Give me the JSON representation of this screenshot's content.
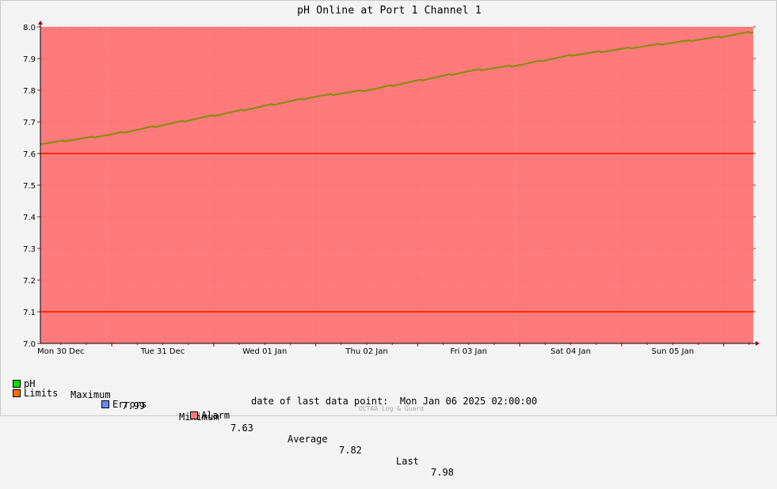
{
  "title": "pH Online at Port 1 Channel 1",
  "colors": {
    "background": "#f3f3f3",
    "alarm_fill": "#ff7b7b",
    "limit_line": "#ff2a00",
    "series": "#8a8a10",
    "ph_swatch": "#00e000",
    "limits_swatch": "#ff6a00",
    "errors_swatch": "#6e8aff",
    "alarm_swatch": "#ff7b7b"
  },
  "legend": {
    "ph_label": "pH",
    "max_label": "Maximum",
    "max_value": "7.99",
    "min_label": "Minimum",
    "min_value": "7.63",
    "avg_label": "Average",
    "avg_value": "7.82",
    "last_label": "Last",
    "last_value": "7.98",
    "limits_label": "Limits",
    "errors_label": "Errors",
    "alarm_label": "Alarm"
  },
  "footer": {
    "date_prefix": "date of last data point:",
    "date_value": "Mon Jan 06 2025 02:00:00",
    "watermark": "OCTAA Log & Guard"
  },
  "chart_data": {
    "type": "line",
    "title": "pH Online at Port 1 Channel 1",
    "ylim": [
      7.0,
      8.0
    ],
    "y_ticks": [
      "7.0",
      "7.1",
      "7.2",
      "7.3",
      "7.4",
      "7.5",
      "7.6",
      "7.7",
      "7.8",
      "7.9",
      "8.0"
    ],
    "x_tick_labels": [
      "Mon 30 Dec",
      "Tue 31 Dec",
      "Wed 01 Jan",
      "Thu 02 Jan",
      "Fri 03 Jan",
      "Sat 04 Jan",
      "Sun 05 Jan"
    ],
    "x_range_days": [
      -0.2,
      6.79
    ],
    "grid": true,
    "limits": [
      7.1,
      7.6
    ],
    "alarm_region": [
      7.0,
      8.0
    ],
    "series": [
      {
        "name": "pH",
        "x_days": [
          -0.2,
          0.5,
          1.0,
          1.5,
          2.0,
          2.5,
          3.0,
          3.5,
          4.0,
          4.5,
          5.0,
          5.5,
          6.0,
          6.5,
          6.79
        ],
        "values": [
          7.63,
          7.66,
          7.69,
          7.72,
          7.75,
          7.78,
          7.8,
          7.83,
          7.86,
          7.88,
          7.91,
          7.93,
          7.95,
          7.97,
          7.985
        ]
      }
    ]
  }
}
